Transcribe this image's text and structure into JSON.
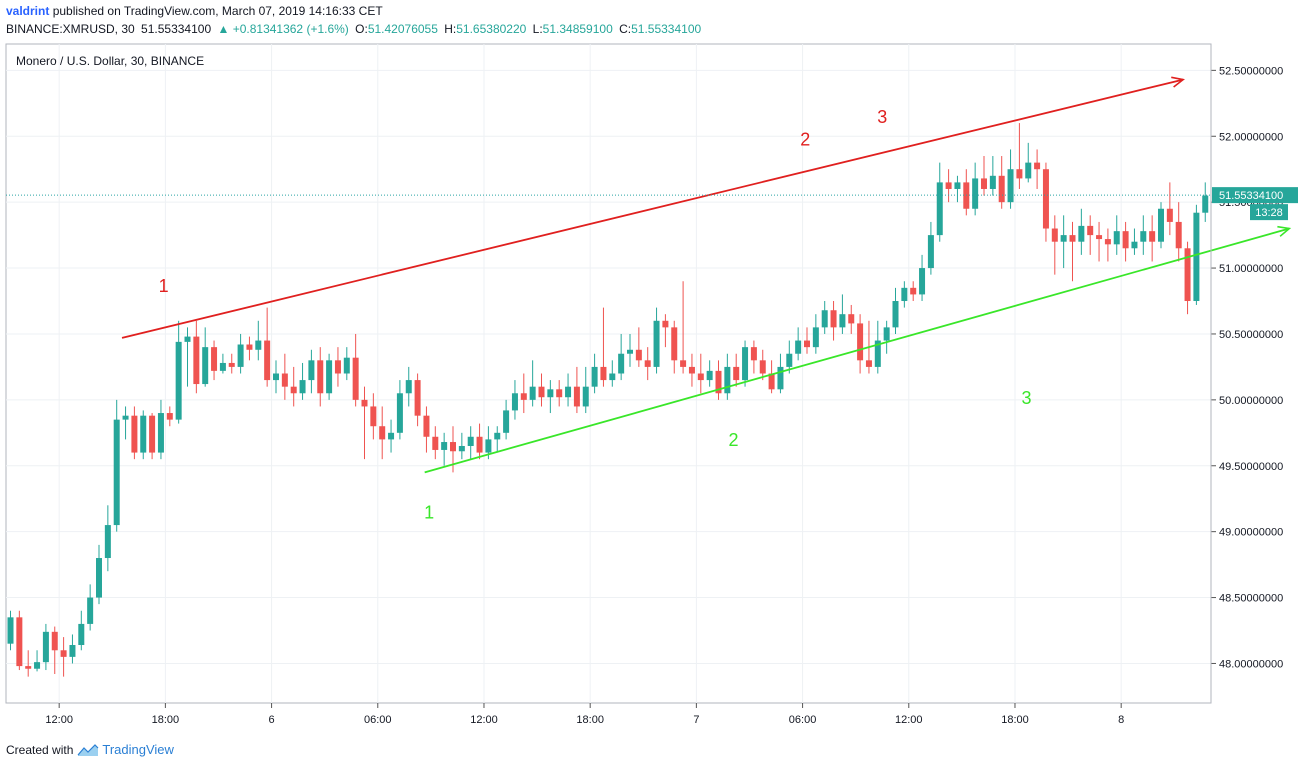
{
  "header": {
    "user": "valdrint",
    "published_text": "published on TradingView.com, March 07, 2019 14:16:33 CET",
    "symbol_line": "BINANCE:XMRUSD, 30",
    "last_price": "51.55334100",
    "change": "+0.81341362 (+1.6%)",
    "o_label": "O:",
    "o_value": "51.42076055",
    "h_label": "H:",
    "h_value": "51.65380220",
    "l_label": "L:",
    "l_value": "51.34859100",
    "c_label": "C:",
    "c_value": "51.55334100"
  },
  "footer": {
    "created_with": "Created with",
    "brand": "TradingView"
  },
  "colors": {
    "up": "#26a69a",
    "down": "#ef5350",
    "resistance": "#e0201f",
    "support": "#39e629",
    "price_line": "#2aa5a5",
    "grid": "#eef1f4",
    "axis": "#131722"
  },
  "chart_data": {
    "type": "candlestick",
    "title": "Monero / U.S. Dollar, 30, BINANCE",
    "ylim": [
      47.7,
      52.7
    ],
    "y_ticks": [
      "52.50000000",
      "52.00000000",
      "51.50000000",
      "51.00000000",
      "50.50000000",
      "50.00000000",
      "49.50000000",
      "49.00000000",
      "48.50000000",
      "48.00000000"
    ],
    "y_tick_values": [
      52.5,
      52.0,
      51.5,
      51.0,
      50.5,
      50.0,
      49.5,
      49.0,
      48.5,
      48.0
    ],
    "x_ticks": [
      {
        "label": "12:00",
        "i": 5.5
      },
      {
        "label": "18:00",
        "i": 17.5
      },
      {
        "label": "6",
        "i": 29.5
      },
      {
        "label": "06:00",
        "i": 41.5
      },
      {
        "label": "12:00",
        "i": 53.5
      },
      {
        "label": "18:00",
        "i": 65.5
      },
      {
        "label": "7",
        "i": 77.5
      },
      {
        "label": "06:00",
        "i": 89.5
      },
      {
        "label": "12:00",
        "i": 101.5
      },
      {
        "label": "18:00",
        "i": 113.5
      },
      {
        "label": "8",
        "i": 125.5
      }
    ],
    "current_price": {
      "value": 51.553341,
      "label": "51.55334100",
      "countdown": "13:28"
    },
    "candles": [
      [
        48.15,
        48.35,
        48.4,
        48.1
      ],
      [
        48.35,
        47.98,
        48.4,
        47.95
      ],
      [
        47.98,
        47.96,
        48.1,
        47.9
      ],
      [
        47.96,
        48.01,
        48.1,
        47.94
      ],
      [
        48.01,
        48.24,
        48.3,
        47.95
      ],
      [
        48.24,
        48.1,
        48.28,
        47.92
      ],
      [
        48.1,
        48.05,
        48.2,
        47.9
      ],
      [
        48.05,
        48.14,
        48.22,
        48.0
      ],
      [
        48.14,
        48.3,
        48.4,
        48.1
      ],
      [
        48.3,
        48.5,
        48.6,
        48.25
      ],
      [
        48.5,
        48.8,
        48.9,
        48.45
      ],
      [
        48.8,
        49.05,
        49.2,
        48.7
      ],
      [
        49.05,
        49.85,
        50.0,
        49.0
      ],
      [
        49.85,
        49.88,
        49.95,
        49.7
      ],
      [
        49.88,
        49.6,
        49.95,
        49.55
      ],
      [
        49.6,
        49.88,
        49.92,
        49.55
      ],
      [
        49.88,
        49.6,
        49.9,
        49.55
      ],
      [
        49.6,
        49.9,
        50.0,
        49.55
      ],
      [
        49.9,
        49.85,
        49.95,
        49.8
      ],
      [
        49.85,
        50.44,
        50.6,
        49.82
      ],
      [
        50.44,
        50.48,
        50.55,
        50.1
      ],
      [
        50.48,
        50.12,
        50.6,
        50.05
      ],
      [
        50.12,
        50.4,
        50.55,
        50.1
      ],
      [
        50.4,
        50.22,
        50.45,
        50.15
      ],
      [
        50.22,
        50.28,
        50.35,
        50.2
      ],
      [
        50.28,
        50.25,
        50.35,
        50.2
      ],
      [
        50.25,
        50.42,
        50.5,
        50.2
      ],
      [
        50.42,
        50.38,
        50.48,
        50.3
      ],
      [
        50.38,
        50.45,
        50.6,
        50.3
      ],
      [
        50.45,
        50.15,
        50.7,
        50.1
      ],
      [
        50.15,
        50.2,
        50.3,
        50.05
      ],
      [
        50.2,
        50.1,
        50.35,
        50.0
      ],
      [
        50.1,
        50.05,
        50.25,
        49.95
      ],
      [
        50.05,
        50.15,
        50.28,
        50.0
      ],
      [
        50.15,
        50.3,
        50.38,
        50.05
      ],
      [
        50.3,
        50.05,
        50.4,
        49.95
      ],
      [
        50.05,
        50.3,
        50.35,
        50.0
      ],
      [
        50.3,
        50.2,
        50.4,
        50.1
      ],
      [
        50.2,
        50.32,
        50.4,
        50.15
      ],
      [
        50.32,
        50.0,
        50.5,
        49.95
      ],
      [
        50.0,
        49.95,
        50.1,
        49.55
      ],
      [
        49.95,
        49.8,
        50.05,
        49.7
      ],
      [
        49.8,
        49.7,
        49.95,
        49.55
      ],
      [
        49.7,
        49.75,
        49.85,
        49.6
      ],
      [
        49.75,
        50.05,
        50.15,
        49.7
      ],
      [
        50.05,
        50.15,
        50.25,
        49.95
      ],
      [
        50.15,
        49.88,
        50.2,
        49.8
      ],
      [
        49.88,
        49.72,
        49.95,
        49.6
      ],
      [
        49.72,
        49.62,
        49.8,
        49.55
      ],
      [
        49.62,
        49.68,
        49.75,
        49.5
      ],
      [
        49.68,
        49.61,
        49.8,
        49.45
      ],
      [
        49.61,
        49.65,
        49.75,
        49.55
      ],
      [
        49.65,
        49.72,
        49.8,
        49.55
      ],
      [
        49.72,
        49.6,
        49.82,
        49.55
      ],
      [
        49.6,
        49.7,
        49.8,
        49.55
      ],
      [
        49.7,
        49.75,
        49.8,
        49.6
      ],
      [
        49.75,
        49.92,
        50.0,
        49.7
      ],
      [
        49.92,
        50.05,
        50.15,
        49.85
      ],
      [
        50.05,
        50.0,
        50.2,
        49.9
      ],
      [
        50.0,
        50.1,
        50.3,
        49.95
      ],
      [
        50.1,
        50.02,
        50.2,
        49.95
      ],
      [
        50.02,
        50.08,
        50.15,
        49.9
      ],
      [
        50.08,
        50.02,
        50.15,
        49.95
      ],
      [
        50.02,
        50.1,
        50.2,
        49.95
      ],
      [
        50.1,
        49.95,
        50.25,
        49.9
      ],
      [
        49.95,
        50.1,
        50.25,
        49.9
      ],
      [
        50.1,
        50.25,
        50.35,
        50.05
      ],
      [
        50.25,
        50.15,
        50.7,
        50.1
      ],
      [
        50.15,
        50.2,
        50.3,
        50.1
      ],
      [
        50.2,
        50.35,
        50.5,
        50.15
      ],
      [
        50.35,
        50.38,
        50.5,
        50.25
      ],
      [
        50.38,
        50.3,
        50.55,
        50.25
      ],
      [
        50.3,
        50.25,
        50.4,
        50.15
      ],
      [
        50.25,
        50.6,
        50.7,
        50.2
      ],
      [
        50.6,
        50.55,
        50.65,
        50.4
      ],
      [
        50.55,
        50.3,
        50.6,
        50.2
      ],
      [
        50.3,
        50.25,
        50.9,
        50.2
      ],
      [
        50.25,
        50.2,
        50.35,
        50.1
      ],
      [
        50.2,
        50.15,
        50.35,
        50.05
      ],
      [
        50.15,
        50.22,
        50.3,
        50.1
      ],
      [
        50.22,
        50.05,
        50.3,
        50.0
      ],
      [
        50.05,
        50.25,
        50.35,
        50.0
      ],
      [
        50.25,
        50.15,
        50.35,
        50.1
      ],
      [
        50.15,
        50.4,
        50.45,
        50.1
      ],
      [
        50.4,
        50.3,
        50.45,
        50.2
      ],
      [
        50.3,
        50.2,
        50.38,
        50.15
      ],
      [
        50.2,
        50.08,
        50.3,
        50.05
      ],
      [
        50.08,
        50.25,
        50.35,
        50.05
      ],
      [
        50.25,
        50.35,
        50.45,
        50.2
      ],
      [
        50.35,
        50.45,
        50.55,
        50.3
      ],
      [
        50.45,
        50.4,
        50.55,
        50.35
      ],
      [
        50.4,
        50.55,
        50.65,
        50.35
      ],
      [
        50.55,
        50.68,
        50.75,
        50.5
      ],
      [
        50.68,
        50.55,
        50.75,
        50.45
      ],
      [
        50.55,
        50.65,
        50.8,
        50.5
      ],
      [
        50.65,
        50.58,
        50.72,
        50.5
      ],
      [
        50.58,
        50.3,
        50.65,
        50.2
      ],
      [
        50.3,
        50.25,
        50.6,
        50.2
      ],
      [
        50.25,
        50.45,
        50.6,
        50.2
      ],
      [
        50.45,
        50.55,
        50.6,
        50.35
      ],
      [
        50.55,
        50.75,
        50.85,
        50.5
      ],
      [
        50.75,
        50.85,
        50.9,
        50.7
      ],
      [
        50.85,
        50.8,
        50.9,
        50.75
      ],
      [
        50.8,
        51.0,
        51.1,
        50.75
      ],
      [
        51.0,
        51.25,
        51.35,
        50.95
      ],
      [
        51.25,
        51.65,
        51.8,
        51.2
      ],
      [
        51.65,
        51.6,
        51.75,
        51.5
      ],
      [
        51.6,
        51.65,
        51.7,
        51.5
      ],
      [
        51.65,
        51.45,
        51.75,
        51.4
      ],
      [
        51.45,
        51.68,
        51.8,
        51.4
      ],
      [
        51.68,
        51.6,
        51.85,
        51.55
      ],
      [
        51.6,
        51.7,
        51.85,
        51.55
      ],
      [
        51.7,
        51.5,
        51.85,
        51.45
      ],
      [
        51.5,
        51.75,
        51.9,
        51.45
      ],
      [
        51.75,
        51.68,
        52.1,
        51.6
      ],
      [
        51.68,
        51.8,
        51.95,
        51.65
      ],
      [
        51.8,
        51.75,
        51.9,
        51.6
      ],
      [
        51.75,
        51.3,
        51.8,
        51.2
      ],
      [
        51.3,
        51.2,
        51.4,
        50.95
      ],
      [
        51.2,
        51.25,
        51.4,
        51.0
      ],
      [
        51.25,
        51.2,
        51.35,
        50.9
      ],
      [
        51.2,
        51.32,
        51.45,
        51.1
      ],
      [
        51.32,
        51.25,
        51.4,
        51.1
      ],
      [
        51.25,
        51.22,
        51.35,
        51.05
      ],
      [
        51.22,
        51.18,
        51.3,
        51.05
      ],
      [
        51.18,
        51.28,
        51.4,
        51.1
      ],
      [
        51.28,
        51.15,
        51.35,
        51.05
      ],
      [
        51.15,
        51.2,
        51.3,
        51.1
      ],
      [
        51.2,
        51.28,
        51.4,
        51.1
      ],
      [
        51.28,
        51.2,
        51.4,
        51.05
      ],
      [
        51.2,
        51.45,
        51.5,
        51.15
      ],
      [
        51.45,
        51.35,
        51.65,
        51.25
      ],
      [
        51.35,
        51.15,
        51.5,
        51.05
      ],
      [
        51.15,
        50.75,
        51.2,
        50.65
      ],
      [
        50.75,
        51.42,
        51.48,
        50.72
      ],
      [
        51.42,
        51.55,
        51.65,
        51.35
      ]
    ],
    "annotations": [
      {
        "text": "1",
        "color": "resistance",
        "i": 17.3,
        "price": 50.82
      },
      {
        "text": "2",
        "color": "resistance",
        "i": 89.8,
        "price": 51.93
      },
      {
        "text": "3",
        "color": "resistance",
        "i": 98.5,
        "price": 52.1
      },
      {
        "text": "1",
        "color": "support",
        "i": 47.3,
        "price": 49.1
      },
      {
        "text": "2",
        "color": "support",
        "i": 81.7,
        "price": 49.65
      },
      {
        "text": "3",
        "color": "support",
        "i": 114.8,
        "price": 49.97
      }
    ],
    "lines": [
      {
        "color": "resistance",
        "from": {
          "i": 12.6,
          "price": 50.47
        },
        "to": {
          "i": 132.5,
          "price": 52.43
        },
        "arrow": true
      },
      {
        "color": "support",
        "from": {
          "i": 46.8,
          "price": 49.45
        },
        "to": {
          "i": 144.5,
          "price": 51.3
        },
        "arrow": true
      }
    ]
  }
}
